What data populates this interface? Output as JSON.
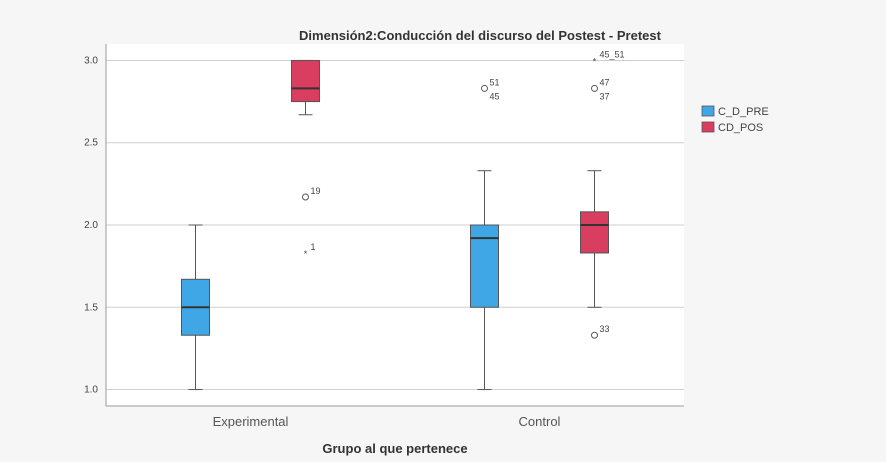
{
  "chart_data": {
    "type": "boxplot",
    "title": "Dimensión2:Conducción del discurso del Postest - Pretest",
    "xlabel": "Grupo al que pertenece",
    "ylabel": "",
    "ylim": [
      0.9,
      3.1
    ],
    "yticks": [
      "1.0",
      "1.5",
      "2.0",
      "2.5",
      "3.0"
    ],
    "categories": [
      "Experimental",
      "Control"
    ],
    "grid": true,
    "legend": "right",
    "series": [
      {
        "name": "C_D_PRE",
        "color": "#3fa7e6",
        "boxes": [
          {
            "min": 1.0,
            "q1": 1.33,
            "median": 1.5,
            "q3": 1.67,
            "max": 2.0
          },
          {
            "min": 1.0,
            "q1": 1.5,
            "median": 1.92,
            "q3": 2.0,
            "max": 2.33
          }
        ]
      },
      {
        "name": "CD_POS",
        "color": "#d93d5f",
        "boxes": [
          {
            "min": 2.67,
            "q1": 2.75,
            "median": 2.83,
            "q3": 3.0,
            "max": 3.0
          },
          {
            "min": 1.5,
            "q1": 1.83,
            "median": 2.0,
            "q3": 2.08,
            "max": 2.33
          }
        ]
      }
    ],
    "outliers": [
      {
        "category": "Experimental",
        "series": "CD_POS",
        "value": 2.17,
        "marker": "circle",
        "label": "19"
      },
      {
        "category": "Experimental",
        "series": "CD_POS",
        "value": 1.83,
        "marker": "star",
        "label": "1"
      },
      {
        "category": "Control",
        "series": "C_D_PRE",
        "value": 2.83,
        "marker": "circle",
        "label": "51"
      },
      {
        "category": "Control",
        "series": "C_D_PRE",
        "value": 2.83,
        "marker": "none",
        "label": "45"
      },
      {
        "category": "Control",
        "series": "CD_POS",
        "value": 3.0,
        "marker": "star",
        "label": "45_51"
      },
      {
        "category": "Control",
        "series": "CD_POS",
        "value": 2.83,
        "marker": "circle",
        "label": "47"
      },
      {
        "category": "Control",
        "series": "CD_POS",
        "value": 2.83,
        "marker": "none",
        "label": "37"
      },
      {
        "category": "Control",
        "series": "CD_POS",
        "value": 1.33,
        "marker": "circle",
        "label": "33"
      }
    ]
  }
}
